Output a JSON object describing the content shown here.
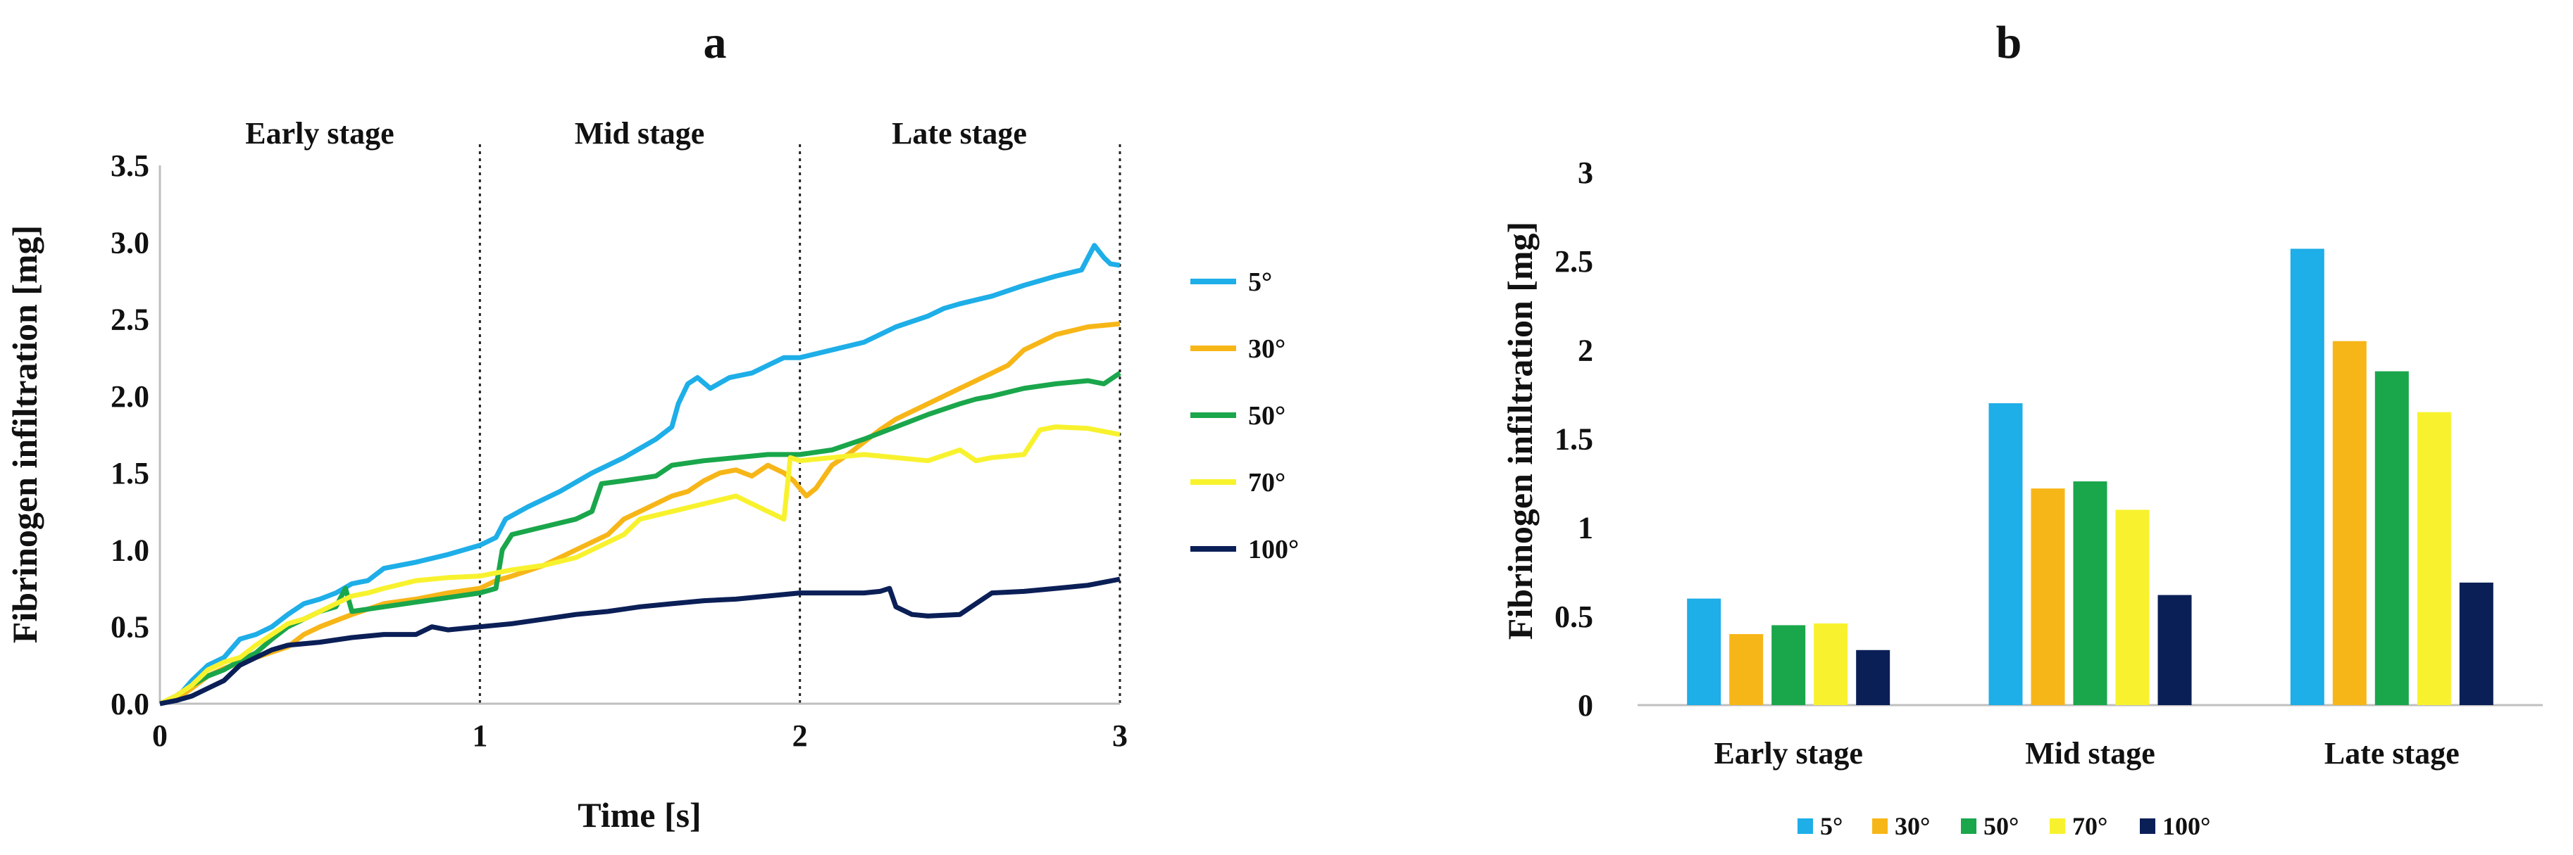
{
  "colors": {
    "5°": "#1eaee8",
    "30°": "#f7b618",
    "50°": "#1aa64b",
    "70°": "#f8f22e",
    "100°": "#0b1f57"
  },
  "chart_data": [
    {
      "type": "line",
      "panel_label": "a",
      "title": "",
      "xlabel": "Time [s]",
      "ylabel": "Fibrinogen infiltration [mg]",
      "xlim": [
        0,
        3
      ],
      "ylim": [
        0,
        3.5
      ],
      "x_ticks": [
        0,
        1,
        2,
        3
      ],
      "y_ticks": [
        "0.0",
        "0.5",
        "1.0",
        "1.5",
        "2.0",
        "2.5",
        "3.0",
        "3.5"
      ],
      "grid": false,
      "legend_position": "right",
      "stage_dividers_x": [
        1,
        2,
        3
      ],
      "stage_labels": [
        "Early stage",
        "Mid stage",
        "Late stage"
      ],
      "series": [
        {
          "name": "5°",
          "points": [
            [
              0,
              0
            ],
            [
              0.05,
              0.03
            ],
            [
              0.1,
              0.15
            ],
            [
              0.15,
              0.25
            ],
            [
              0.2,
              0.3
            ],
            [
              0.25,
              0.42
            ],
            [
              0.3,
              0.45
            ],
            [
              0.35,
              0.5
            ],
            [
              0.4,
              0.58
            ],
            [
              0.45,
              0.65
            ],
            [
              0.5,
              0.68
            ],
            [
              0.55,
              0.72
            ],
            [
              0.6,
              0.78
            ],
            [
              0.65,
              0.8
            ],
            [
              0.7,
              0.88
            ],
            [
              0.8,
              0.92
            ],
            [
              0.9,
              0.97
            ],
            [
              1.0,
              1.03
            ],
            [
              1.05,
              1.08
            ],
            [
              1.08,
              1.2
            ],
            [
              1.15,
              1.28
            ],
            [
              1.25,
              1.38
            ],
            [
              1.35,
              1.5
            ],
            [
              1.45,
              1.6
            ],
            [
              1.55,
              1.72
            ],
            [
              1.6,
              1.8
            ],
            [
              1.62,
              1.95
            ],
            [
              1.65,
              2.08
            ],
            [
              1.68,
              2.12
            ],
            [
              1.72,
              2.05
            ],
            [
              1.78,
              2.12
            ],
            [
              1.85,
              2.15
            ],
            [
              1.9,
              2.2
            ],
            [
              1.95,
              2.25
            ],
            [
              2.0,
              2.25
            ],
            [
              2.1,
              2.3
            ],
            [
              2.2,
              2.35
            ],
            [
              2.3,
              2.45
            ],
            [
              2.4,
              2.52
            ],
            [
              2.45,
              2.57
            ],
            [
              2.5,
              2.6
            ],
            [
              2.6,
              2.65
            ],
            [
              2.7,
              2.72
            ],
            [
              2.8,
              2.78
            ],
            [
              2.88,
              2.82
            ],
            [
              2.92,
              2.98
            ],
            [
              2.95,
              2.9
            ],
            [
              2.97,
              2.86
            ],
            [
              3.0,
              2.85
            ]
          ]
        },
        {
          "name": "30°",
          "points": [
            [
              0,
              0
            ],
            [
              0.05,
              0.03
            ],
            [
              0.1,
              0.1
            ],
            [
              0.15,
              0.18
            ],
            [
              0.2,
              0.23
            ],
            [
              0.3,
              0.3
            ],
            [
              0.4,
              0.37
            ],
            [
              0.45,
              0.45
            ],
            [
              0.5,
              0.5
            ],
            [
              0.6,
              0.58
            ],
            [
              0.7,
              0.65
            ],
            [
              0.8,
              0.68
            ],
            [
              0.9,
              0.72
            ],
            [
              1.0,
              0.75
            ],
            [
              1.05,
              0.8
            ],
            [
              1.1,
              0.83
            ],
            [
              1.2,
              0.9
            ],
            [
              1.3,
              1.0
            ],
            [
              1.35,
              1.05
            ],
            [
              1.4,
              1.1
            ],
            [
              1.45,
              1.2
            ],
            [
              1.5,
              1.25
            ],
            [
              1.55,
              1.3
            ],
            [
              1.6,
              1.35
            ],
            [
              1.65,
              1.38
            ],
            [
              1.7,
              1.45
            ],
            [
              1.75,
              1.5
            ],
            [
              1.8,
              1.52
            ],
            [
              1.85,
              1.48
            ],
            [
              1.9,
              1.55
            ],
            [
              1.95,
              1.5
            ],
            [
              1.98,
              1.45
            ],
            [
              2.02,
              1.35
            ],
            [
              2.05,
              1.4
            ],
            [
              2.1,
              1.55
            ],
            [
              2.15,
              1.62
            ],
            [
              2.2,
              1.7
            ],
            [
              2.25,
              1.78
            ],
            [
              2.3,
              1.85
            ],
            [
              2.4,
              1.95
            ],
            [
              2.5,
              2.05
            ],
            [
              2.55,
              2.1
            ],
            [
              2.6,
              2.15
            ],
            [
              2.65,
              2.2
            ],
            [
              2.7,
              2.3
            ],
            [
              2.75,
              2.35
            ],
            [
              2.8,
              2.4
            ],
            [
              2.9,
              2.45
            ],
            [
              3.0,
              2.47
            ]
          ]
        },
        {
          "name": "50°",
          "points": [
            [
              0,
              0
            ],
            [
              0.05,
              0.05
            ],
            [
              0.1,
              0.12
            ],
            [
              0.15,
              0.18
            ],
            [
              0.2,
              0.22
            ],
            [
              0.25,
              0.28
            ],
            [
              0.3,
              0.33
            ],
            [
              0.35,
              0.42
            ],
            [
              0.4,
              0.5
            ],
            [
              0.45,
              0.55
            ],
            [
              0.5,
              0.6
            ],
            [
              0.55,
              0.63
            ],
            [
              0.58,
              0.75
            ],
            [
              0.6,
              0.6
            ],
            [
              0.7,
              0.63
            ],
            [
              0.8,
              0.66
            ],
            [
              0.9,
              0.69
            ],
            [
              1.0,
              0.72
            ],
            [
              1.05,
              0.75
            ],
            [
              1.07,
              1.0
            ],
            [
              1.1,
              1.1
            ],
            [
              1.2,
              1.15
            ],
            [
              1.3,
              1.2
            ],
            [
              1.35,
              1.25
            ],
            [
              1.38,
              1.43
            ],
            [
              1.45,
              1.45
            ],
            [
              1.55,
              1.48
            ],
            [
              1.6,
              1.55
            ],
            [
              1.7,
              1.58
            ],
            [
              1.8,
              1.6
            ],
            [
              1.9,
              1.62
            ],
            [
              2.0,
              1.62
            ],
            [
              2.1,
              1.65
            ],
            [
              2.2,
              1.72
            ],
            [
              2.3,
              1.8
            ],
            [
              2.4,
              1.88
            ],
            [
              2.5,
              1.95
            ],
            [
              2.55,
              1.98
            ],
            [
              2.6,
              2.0
            ],
            [
              2.7,
              2.05
            ],
            [
              2.8,
              2.08
            ],
            [
              2.9,
              2.1
            ],
            [
              2.95,
              2.08
            ],
            [
              3.0,
              2.15
            ]
          ]
        },
        {
          "name": "70°",
          "points": [
            [
              0,
              0
            ],
            [
              0.05,
              0.05
            ],
            [
              0.1,
              0.12
            ],
            [
              0.15,
              0.22
            ],
            [
              0.2,
              0.27
            ],
            [
              0.25,
              0.3
            ],
            [
              0.3,
              0.38
            ],
            [
              0.35,
              0.45
            ],
            [
              0.4,
              0.52
            ],
            [
              0.45,
              0.55
            ],
            [
              0.5,
              0.6
            ],
            [
              0.55,
              0.65
            ],
            [
              0.6,
              0.7
            ],
            [
              0.65,
              0.72
            ],
            [
              0.7,
              0.75
            ],
            [
              0.8,
              0.8
            ],
            [
              0.9,
              0.82
            ],
            [
              1.0,
              0.83
            ],
            [
              1.05,
              0.85
            ],
            [
              1.1,
              0.87
            ],
            [
              1.2,
              0.9
            ],
            [
              1.3,
              0.95
            ],
            [
              1.4,
              1.05
            ],
            [
              1.45,
              1.1
            ],
            [
              1.5,
              1.2
            ],
            [
              1.6,
              1.25
            ],
            [
              1.7,
              1.3
            ],
            [
              1.8,
              1.35
            ],
            [
              1.85,
              1.3
            ],
            [
              1.9,
              1.25
            ],
            [
              1.95,
              1.2
            ],
            [
              1.97,
              1.6
            ],
            [
              2.0,
              1.58
            ],
            [
              2.1,
              1.6
            ],
            [
              2.2,
              1.62
            ],
            [
              2.3,
              1.6
            ],
            [
              2.4,
              1.58
            ],
            [
              2.5,
              1.65
            ],
            [
              2.55,
              1.58
            ],
            [
              2.6,
              1.6
            ],
            [
              2.7,
              1.62
            ],
            [
              2.75,
              1.78
            ],
            [
              2.8,
              1.8
            ],
            [
              2.9,
              1.79
            ],
            [
              3.0,
              1.75
            ]
          ]
        },
        {
          "name": "100°",
          "points": [
            [
              0,
              0
            ],
            [
              0.05,
              0.02
            ],
            [
              0.1,
              0.05
            ],
            [
              0.15,
              0.1
            ],
            [
              0.2,
              0.15
            ],
            [
              0.25,
              0.25
            ],
            [
              0.3,
              0.3
            ],
            [
              0.35,
              0.35
            ],
            [
              0.4,
              0.38
            ],
            [
              0.5,
              0.4
            ],
            [
              0.6,
              0.43
            ],
            [
              0.7,
              0.45
            ],
            [
              0.8,
              0.45
            ],
            [
              0.85,
              0.5
            ],
            [
              0.9,
              0.48
            ],
            [
              1.0,
              0.5
            ],
            [
              1.1,
              0.52
            ],
            [
              1.2,
              0.55
            ],
            [
              1.3,
              0.58
            ],
            [
              1.4,
              0.6
            ],
            [
              1.5,
              0.63
            ],
            [
              1.6,
              0.65
            ],
            [
              1.7,
              0.67
            ],
            [
              1.8,
              0.68
            ],
            [
              1.9,
              0.7
            ],
            [
              2.0,
              0.72
            ],
            [
              2.1,
              0.72
            ],
            [
              2.2,
              0.72
            ],
            [
              2.25,
              0.73
            ],
            [
              2.28,
              0.75
            ],
            [
              2.3,
              0.63
            ],
            [
              2.35,
              0.58
            ],
            [
              2.4,
              0.57
            ],
            [
              2.5,
              0.58
            ],
            [
              2.55,
              0.65
            ],
            [
              2.6,
              0.72
            ],
            [
              2.7,
              0.73
            ],
            [
              2.8,
              0.75
            ],
            [
              2.9,
              0.77
            ],
            [
              3.0,
              0.81
            ]
          ]
        }
      ]
    },
    {
      "type": "bar",
      "panel_label": "b",
      "title": "",
      "xlabel": "",
      "ylabel": "Fibrinogen infiltration [mg]",
      "ylim": [
        0,
        3
      ],
      "y_ticks": [
        "0",
        "0.5",
        "1",
        "1.5",
        "2",
        "2.5",
        "3"
      ],
      "grid": false,
      "legend_position": "bottom",
      "categories": [
        "Early stage",
        "Mid stage",
        "Late stage"
      ],
      "series": [
        {
          "name": "5°",
          "values": [
            0.6,
            1.7,
            2.57
          ]
        },
        {
          "name": "30°",
          "values": [
            0.4,
            1.22,
            2.05
          ]
        },
        {
          "name": "50°",
          "values": [
            0.45,
            1.26,
            1.88
          ]
        },
        {
          "name": "70°",
          "values": [
            0.46,
            1.1,
            1.65
          ]
        },
        {
          "name": "100°",
          "values": [
            0.31,
            0.62,
            0.69
          ]
        }
      ]
    }
  ]
}
